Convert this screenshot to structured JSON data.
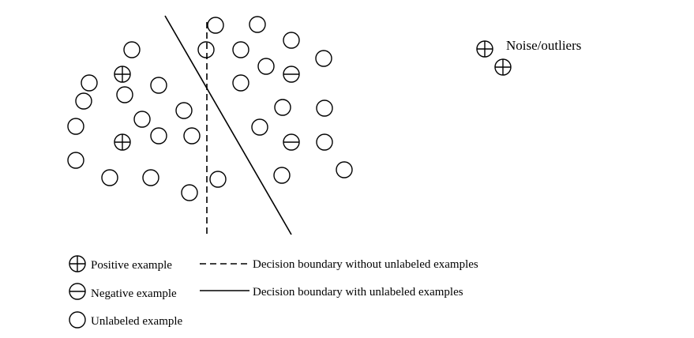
{
  "noise_label": "Noise/outliers",
  "legend": {
    "positive": "Positive example",
    "negative": "Negative example",
    "unlabeled": "Unlabeled example",
    "dashed": "Decision boundary without unlabeled examples",
    "solid": "Decision boundary with unlabeled examples"
  }
}
